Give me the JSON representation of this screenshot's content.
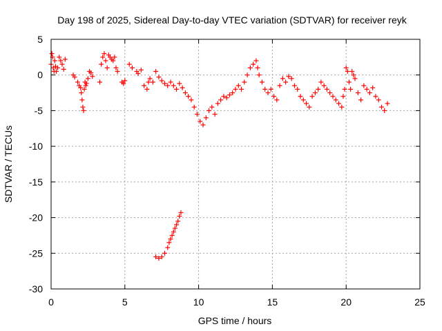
{
  "chart_data": {
    "type": "scatter",
    "title": "Day 198 of 2025, Sidereal Day-to-day VTEC variation (SDTVAR) for receiver reyk",
    "xlabel": "GPS time / hours",
    "ylabel": "SDTVAR / TECUs",
    "xlim": [
      0,
      25
    ],
    "ylim": [
      -30,
      5
    ],
    "xticks": [
      0,
      5,
      10,
      15,
      20,
      25
    ],
    "yticks": [
      5,
      0,
      -5,
      -10,
      -15,
      -20,
      -25,
      -30
    ],
    "grid": true,
    "marker": "+",
    "marker_color": "#ff0000",
    "series": [
      {
        "name": "SDTVAR",
        "x": [
          0.0,
          0.05,
          0.1,
          0.15,
          0.2,
          0.25,
          0.3,
          0.35,
          0.45,
          0.55,
          0.65,
          0.75,
          0.85,
          0.95,
          1.5,
          1.6,
          1.8,
          1.9,
          2.0,
          2.05,
          2.1,
          2.15,
          2.2,
          2.25,
          2.3,
          2.35,
          2.4,
          2.5,
          2.6,
          2.7,
          2.8,
          3.3,
          3.4,
          3.5,
          3.6,
          3.7,
          3.8,
          3.9,
          4.0,
          4.1,
          4.2,
          4.3,
          4.4,
          4.5,
          4.8,
          4.9,
          5.0,
          5.3,
          5.5,
          5.8,
          5.9,
          6.1,
          6.3,
          6.5,
          6.6,
          6.7,
          6.9,
          7.1,
          7.3,
          7.5,
          7.7,
          7.9,
          8.1,
          8.3,
          8.5,
          8.7,
          8.9,
          9.1,
          9.3,
          9.5,
          9.7,
          9.9,
          10.1,
          10.3,
          10.5,
          10.7,
          10.9,
          11.1,
          11.3,
          11.5,
          11.7,
          11.9,
          12.1,
          12.3,
          12.5,
          12.7,
          12.9,
          13.1,
          13.3,
          13.5,
          13.7,
          13.9,
          14.0,
          14.1,
          14.3,
          14.5,
          14.7,
          14.9,
          15.1,
          15.3,
          15.5,
          15.7,
          15.9,
          16.1,
          16.3,
          16.5,
          16.7,
          16.9,
          17.1,
          17.3,
          17.5,
          17.7,
          17.9,
          18.1,
          18.3,
          18.5,
          18.7,
          18.9,
          19.1,
          19.3,
          19.5,
          19.7,
          19.8,
          19.9,
          20.0,
          20.1,
          20.2,
          20.3,
          20.4,
          20.5,
          20.6,
          20.8,
          21.0,
          21.2,
          21.4,
          21.6,
          21.8,
          22.0,
          22.2,
          22.4,
          22.6,
          22.8,
          7.1,
          7.3,
          7.5,
          7.7,
          7.9,
          8.0,
          8.1,
          8.2,
          8.3,
          8.4,
          8.5,
          8.6,
          8.7,
          8.8
        ],
        "y": [
          1.5,
          3.0,
          2.5,
          1.0,
          0.5,
          2.0,
          1.2,
          0.5,
          1.0,
          2.5,
          2.0,
          1.5,
          0.8,
          2.2,
          0.0,
          -0.3,
          -1.0,
          -1.5,
          -1.8,
          -2.5,
          -3.5,
          -4.5,
          -5.0,
          -2.0,
          -1.0,
          -1.5,
          -1.2,
          -0.5,
          0.5,
          0.3,
          -0.2,
          -1.0,
          1.5,
          2.5,
          3.0,
          2.0,
          1.0,
          2.8,
          2.5,
          2.2,
          2.0,
          2.5,
          1.0,
          0.5,
          -1.0,
          -1.2,
          -0.8,
          1.5,
          1.0,
          0.5,
          0.2,
          0.7,
          -1.5,
          -2.0,
          -1.0,
          -0.5,
          -1.0,
          0.5,
          -0.3,
          -0.8,
          -1.2,
          -1.5,
          -1.0,
          -1.5,
          -2.0,
          -1.2,
          -1.8,
          -2.5,
          -3.0,
          -3.5,
          -4.5,
          -5.5,
          -6.5,
          -7.0,
          -6.0,
          -5.0,
          -4.5,
          -5.5,
          -4.0,
          -3.5,
          -3.0,
          -3.2,
          -2.8,
          -2.5,
          -2.0,
          -1.5,
          -2.0,
          -1.0,
          0.0,
          1.0,
          1.5,
          2.0,
          1.0,
          0.0,
          -1.0,
          -2.0,
          -2.5,
          -2.0,
          -3.0,
          -3.5,
          -1.5,
          -0.5,
          -1.0,
          -0.2,
          -0.5,
          -1.5,
          -2.0,
          -3.0,
          -3.5,
          -4.0,
          -4.5,
          -3.0,
          -2.5,
          -2.0,
          -1.0,
          -1.5,
          -2.0,
          -2.5,
          -3.0,
          -3.5,
          -4.0,
          -4.5,
          -3.0,
          -2.0,
          1.0,
          0.5,
          -1.0,
          -2.0,
          0.5,
          0.0,
          -0.5,
          -2.5,
          -3.5,
          -1.5,
          -2.0,
          -2.5,
          -1.8,
          -3.0,
          -3.5,
          -4.5,
          -5.0,
          -4.0,
          -25.5,
          -25.7,
          -25.5,
          -25.0,
          -24.2,
          -23.5,
          -23.0,
          -22.5,
          -22.0,
          -21.5,
          -21.0,
          -20.5,
          -19.8,
          -19.3
        ]
      }
    ]
  }
}
